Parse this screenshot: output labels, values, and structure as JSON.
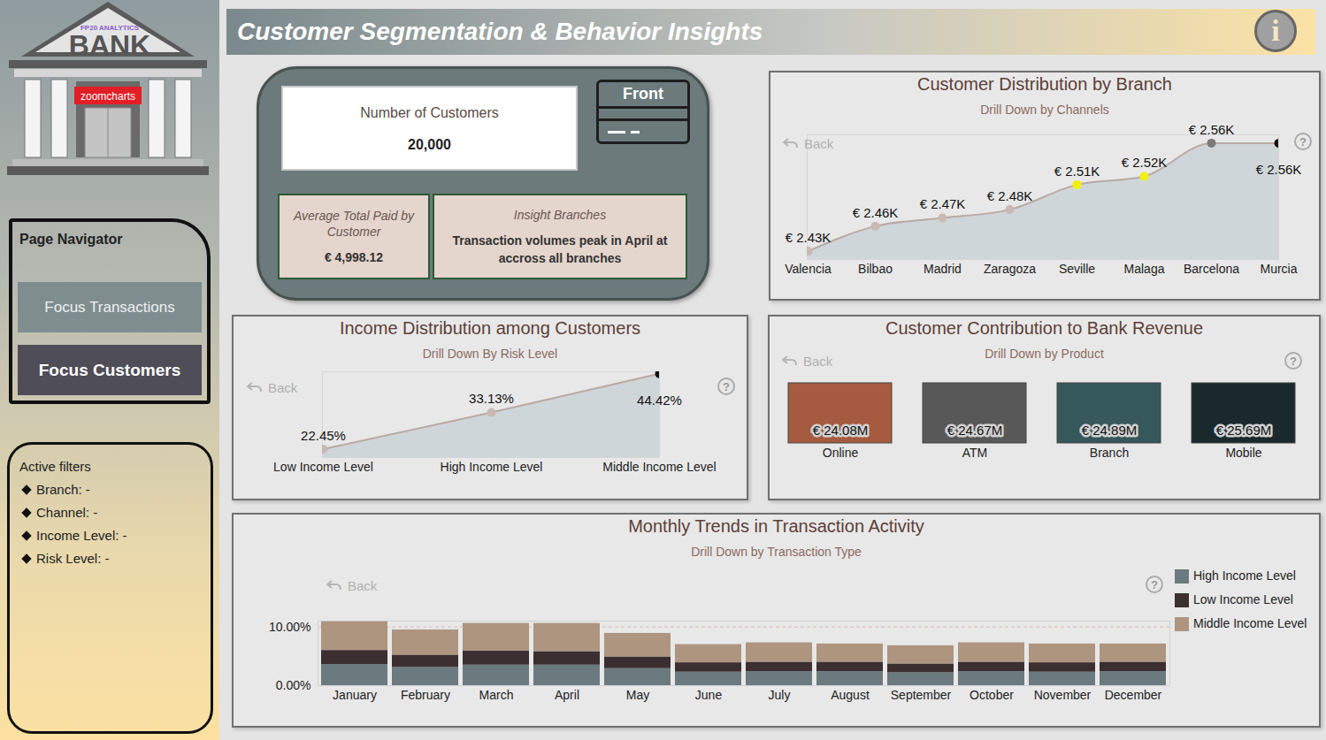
{
  "sidebar": {
    "logo": {
      "brand": "FP20 ANALYTICS",
      "title": "BANK",
      "sign": "zoomcharts"
    },
    "navigator": {
      "title": "Page Navigator",
      "buttons": [
        "Focus Transactions",
        "Focus Customers"
      ]
    },
    "filters": {
      "title": "Active filters",
      "items": [
        "Branch: -",
        "Channel: -",
        "Income Level: -",
        "Risk Level: -"
      ]
    }
  },
  "header": {
    "title": "Customer Segmentation & Behavior Insights",
    "icon": "i"
  },
  "kpis": {
    "customers": {
      "label": "Number of Customers",
      "value": "20,000"
    },
    "toggle": "Front",
    "avg_paid": {
      "label": "Average Total Paid by Customer",
      "value": "€ 4,998.12"
    },
    "insight": {
      "label": "Insight Branches",
      "text": "Transaction volumes peak in April at accross all branches"
    }
  },
  "chart_data": [
    {
      "type": "area",
      "title": "Customer Distribution by Branch",
      "subtitle": "Drill Down by Channels",
      "back": "Back",
      "help": "?",
      "categories": [
        "Valencia",
        "Bilbao",
        "Madrid",
        "Zaragoza",
        "Seville",
        "Malaga",
        "Barcelona",
        "Murcia"
      ],
      "values": [
        2.43,
        2.46,
        2.47,
        2.48,
        2.51,
        2.52,
        2.56,
        2.56
      ],
      "value_labels": [
        "€ 2.43K",
        "€ 2.46K",
        "€ 2.47K",
        "€ 2.48K",
        "€ 2.51K",
        "€ 2.52K",
        "€ 2.56K",
        "€ 2.56K"
      ],
      "data_labels": true,
      "color": "#b9aaa4",
      "marker": "circle",
      "colors": [
        "#c8b9b2",
        "#c8b9b2",
        "#c8b9b2",
        "#c8b9b2",
        "#f2f200",
        "#f2f200",
        "#7a7a7a",
        "#111111"
      ],
      "ylim": [
        2.42,
        2.57
      ],
      "tick_labels": "x"
    },
    {
      "type": "area",
      "title": "Income Distribution among Customers",
      "subtitle": "Drill Down By Risk Level",
      "back": "Back",
      "help": "?",
      "categories": [
        "Low Income Level",
        "High Income Level",
        "Middle Income Level"
      ],
      "values": [
        22.45,
        33.13,
        44.42
      ],
      "value_labels": [
        "22.45%",
        "33.13%",
        "44.42%"
      ],
      "data_labels": true,
      "color": "#b9aaa4",
      "marker": "circle",
      "colors": [
        "#c8b9b2",
        "#c8b9b2",
        "#111111"
      ],
      "ylim": [
        20,
        45
      ],
      "tick_labels": "x"
    },
    {
      "type": "cell",
      "title": "Customer Contribution to Bank Revenue",
      "subtitle": "Drill Down by Product",
      "back": "Back",
      "help": "?",
      "categories": [
        "Online",
        "ATM",
        "Branch",
        "Mobile"
      ],
      "values": [
        24.08,
        24.67,
        24.89,
        25.69
      ],
      "value_labels": [
        "€ 24.08M",
        "€ 24.67M",
        "€ 24.89M",
        "€ 25.69M"
      ],
      "data_labels": true,
      "colors": [
        "#a65a40",
        "#585858",
        "#35585a",
        "#1a2a2c"
      ],
      "tick_labels": "x"
    },
    {
      "type": "bar",
      "title": "Monthly Trends in Transaction Activity",
      "subtitle": "Drill Down by Transaction Type",
      "back": "Back",
      "help": "?",
      "categories": [
        "January",
        "February",
        "March",
        "April",
        "May",
        "June",
        "July",
        "August",
        "September",
        "October",
        "November",
        "December"
      ],
      "series": [
        {
          "name": "High Income Level",
          "color": "#6b7a7e",
          "values": [
            3.6,
            3.1,
            3.5,
            3.5,
            2.9,
            2.3,
            2.4,
            2.4,
            2.2,
            2.4,
            2.3,
            2.4
          ]
        },
        {
          "name": "Low Income Level",
          "color": "#3b2f31",
          "values": [
            2.4,
            2.1,
            2.4,
            2.3,
            2.0,
            1.6,
            1.6,
            1.6,
            1.5,
            1.6,
            1.6,
            1.6
          ]
        },
        {
          "name": "Middle Income Level",
          "color": "#ae9580",
          "values": [
            4.9,
            4.3,
            4.7,
            4.8,
            4.0,
            3.1,
            3.3,
            3.1,
            3.1,
            3.3,
            3.2,
            3.1
          ]
        }
      ],
      "stacked": true,
      "grid": true,
      "legend": "right",
      "ylim": [
        0,
        11
      ],
      "yticks": [
        {
          "value": 0,
          "label": "0.00%"
        },
        {
          "value": 10,
          "label": "10.00%"
        }
      ]
    }
  ]
}
